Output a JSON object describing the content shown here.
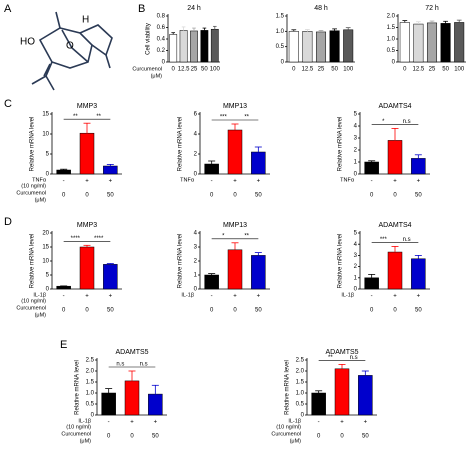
{
  "panels": [
    "A",
    "B",
    "C",
    "D",
    "E"
  ],
  "structure": {
    "labels": [
      "HO",
      "O",
      "H"
    ]
  },
  "chart_data": [
    {
      "type": "bar",
      "title": "24 h",
      "ylabel": "Cell viability",
      "categories": [
        "0",
        "12.5",
        "25",
        "50",
        "100"
      ],
      "row_labels": [
        "Curcumenol",
        "(μM)"
      ],
      "values": [
        0.48,
        0.55,
        0.54,
        0.55,
        0.57
      ],
      "errors": [
        0.03,
        0.06,
        0.05,
        0.04,
        0.05
      ],
      "colors": [
        "#ffffff",
        "#d9d9d9",
        "#a6a6a6",
        "#000000",
        "#595959"
      ],
      "ylim": [
        0,
        0.8
      ],
      "yticks": [
        0,
        0.2,
        0.4,
        0.6,
        0.8
      ]
    },
    {
      "type": "bar",
      "title": "48 h",
      "categories": [
        "0",
        "12.5",
        "25",
        "50",
        "100"
      ],
      "values": [
        1.0,
        1.0,
        0.98,
        1.02,
        1.05
      ],
      "errors": [
        0.05,
        0.06,
        0.05,
        0.06,
        0.07
      ],
      "colors": [
        "#ffffff",
        "#d9d9d9",
        "#a6a6a6",
        "#000000",
        "#595959"
      ],
      "ylim": [
        0,
        1.5
      ],
      "yticks": [
        0,
        0.5,
        {
          "value": 1,
          "label": "1.0"
        },
        1.5
      ]
    },
    {
      "type": "bar",
      "title": "72 h",
      "categories": [
        "0",
        "12.5",
        "25",
        "50",
        "100"
      ],
      "values": [
        1.72,
        1.65,
        1.7,
        1.68,
        1.72
      ],
      "errors": [
        0.08,
        0.1,
        0.08,
        0.09,
        0.1
      ],
      "colors": [
        "#ffffff",
        "#d9d9d9",
        "#a6a6a6",
        "#000000",
        "#595959"
      ],
      "ylim": [
        0,
        2
      ],
      "yticks": [
        0,
        0.5,
        {
          "value": 1,
          "label": "1.0"
        },
        1.5,
        {
          "value": 2,
          "label": "2.0"
        }
      ]
    },
    {
      "type": "bar",
      "title": "MMP3",
      "ylabel": "Relative mRNA level",
      "categories": [
        "-",
        "+",
        "+"
      ],
      "categories2": [
        "0",
        "0",
        "50"
      ],
      "row_labels": [
        "TNFα",
        "(10 ng/ml)",
        "Curcumenol",
        "(μM)"
      ],
      "values": [
        1,
        10.2,
        2
      ],
      "errors": [
        0.2,
        2.5,
        0.4
      ],
      "colors": [
        "#000000",
        "#ff0000",
        "#0000cc"
      ],
      "ylim": [
        0,
        15
      ],
      "yticks": [
        0,
        5,
        10,
        15
      ],
      "significance": [
        "**",
        "**"
      ]
    },
    {
      "type": "bar",
      "title": "MMP13",
      "ylabel": "Relative mRNA level",
      "categories": [
        "-",
        "+",
        "+"
      ],
      "categories2": [
        "0",
        "0",
        "50"
      ],
      "row_labels": [
        "TNFα"
      ],
      "values": [
        1,
        4.4,
        2.2
      ],
      "errors": [
        0.3,
        0.6,
        0.5
      ],
      "colors": [
        "#000000",
        "#ff0000",
        "#0000cc"
      ],
      "ylim": [
        0,
        6
      ],
      "yticks": [
        0,
        2,
        4,
        6
      ],
      "significance": [
        "***",
        "**"
      ]
    },
    {
      "type": "bar",
      "title": "ADAMTS4",
      "ylabel": "Relative mRNA level",
      "categories": [
        "-",
        "+",
        "+"
      ],
      "categories2": [
        "0",
        "0",
        "50"
      ],
      "row_labels": [
        "TNFα"
      ],
      "values": [
        1,
        2.8,
        1.3
      ],
      "errors": [
        0.1,
        1.0,
        0.3
      ],
      "colors": [
        "#000000",
        "#ff0000",
        "#0000cc"
      ],
      "ylim": [
        0,
        5
      ],
      "yticks": [
        0,
        1,
        2,
        3,
        4,
        5
      ],
      "significance": [
        "*",
        "n.s"
      ]
    },
    {
      "type": "bar",
      "title": "MMP3",
      "ylabel": "Relative mRNA level",
      "categories": [
        "-",
        "+",
        "+"
      ],
      "categories2": [
        "0",
        "0",
        "50"
      ],
      "row_labels": [
        "IL-1β",
        "(10 ng/ml)",
        "Curcumenol",
        "(μM)"
      ],
      "values": [
        1,
        15,
        8.8
      ],
      "errors": [
        0.1,
        0.6,
        0.3
      ],
      "colors": [
        "#000000",
        "#ff0000",
        "#0000cc"
      ],
      "ylim": [
        0,
        20
      ],
      "yticks": [
        0,
        5,
        10,
        15,
        20
      ],
      "significance": [
        "****",
        "****"
      ]
    },
    {
      "type": "bar",
      "title": "MMP13",
      "ylabel": "Relative mRNA level",
      "categories": [
        "-",
        "+",
        "+"
      ],
      "categories2": [
        "0",
        "0",
        "50"
      ],
      "row_labels": [
        "IL-1β"
      ],
      "values": [
        1,
        2.8,
        2.4
      ],
      "errors": [
        0.1,
        0.5,
        0.2
      ],
      "colors": [
        "#000000",
        "#ff0000",
        "#0000cc"
      ],
      "ylim": [
        0,
        4
      ],
      "yticks": [
        0,
        1,
        2,
        3,
        4
      ],
      "significance": [
        "*",
        "**"
      ]
    },
    {
      "type": "bar",
      "title": "ADAMTS4",
      "ylabel": "Relative mRNA level",
      "categories": [
        "-",
        "+",
        "+"
      ],
      "categories2": [
        "0",
        "0",
        "50"
      ],
      "row_labels": [
        "IL-1β"
      ],
      "values": [
        1,
        3.3,
        2.7
      ],
      "errors": [
        0.3,
        0.5,
        0.3
      ],
      "colors": [
        "#000000",
        "#ff0000",
        "#0000cc"
      ],
      "ylim": [
        0,
        5
      ],
      "yticks": [
        0,
        1,
        2,
        3,
        4,
        5
      ],
      "significance": [
        "***",
        "n.s"
      ]
    },
    {
      "type": "bar",
      "title": "ADAMTS5",
      "ylabel": "Relative mRNA level",
      "categories": [
        "-",
        "+",
        "+"
      ],
      "categories2": [
        "0",
        "0",
        "50"
      ],
      "row_labels": [
        "IL-1β",
        "(10 ng/ml)",
        "Curcumenol",
        "(μM)"
      ],
      "values": [
        1,
        1.55,
        0.95
      ],
      "errors": [
        0.2,
        0.45,
        0.4
      ],
      "colors": [
        "#000000",
        "#ff0000",
        "#0000cc"
      ],
      "ylim": [
        0,
        2.5
      ],
      "yticks": [
        0,
        0.5,
        {
          "value": 1,
          "label": "1.0"
        },
        1.5,
        {
          "value": 2,
          "label": "2.0"
        },
        2.5
      ],
      "significance": [
        "n.s",
        "n.s"
      ]
    },
    {
      "type": "bar",
      "title": "ADAMTS5",
      "ylabel": "Relative mRNA level",
      "categories": [
        "-",
        "+",
        "+"
      ],
      "categories2": [
        "0",
        "0",
        "50"
      ],
      "row_labels": [
        "IL-1β",
        "(10 ng/ml)",
        "Curcumenol",
        "(μM)"
      ],
      "values": [
        1,
        2.1,
        1.8
      ],
      "errors": [
        0.1,
        0.2,
        0.2
      ],
      "colors": [
        "#000000",
        "#ff0000",
        "#0000cc"
      ],
      "ylim": [
        0,
        2.5
      ],
      "yticks": [
        0,
        0.5,
        {
          "value": 1,
          "label": "1.0"
        },
        1.5,
        {
          "value": 2,
          "label": "2.0"
        },
        2.5
      ],
      "significance": [
        "**",
        "n.s"
      ]
    }
  ]
}
